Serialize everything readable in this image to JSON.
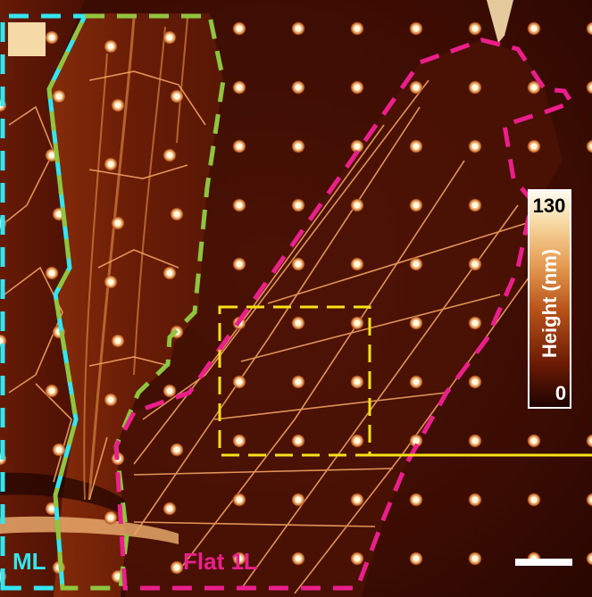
{
  "image": {
    "type": "AFM height map",
    "panel_letter_box": "panel-label-box"
  },
  "regions": {
    "ml": {
      "label": "ML",
      "color": "#33e6f0"
    },
    "bilayer": {
      "label": "",
      "color": "#8ec63f"
    },
    "flat_1l": {
      "label": "Flat 1L",
      "color": "#ec1e8c"
    },
    "zoom_box": {
      "label": "",
      "color": "#f7e11a"
    }
  },
  "colorbar": {
    "max": "130",
    "min": "0",
    "title": "Height (nm)",
    "colors": [
      "#fffcf3",
      "#f6d9a0",
      "#e8a055",
      "#c0581c",
      "#7a1f05",
      "#2a0500"
    ]
  },
  "scale_bar": {
    "label": ""
  },
  "colors": {
    "background": "#3a0a02",
    "pillar": "#ffe8b8",
    "ridge": "#f2a060"
  }
}
